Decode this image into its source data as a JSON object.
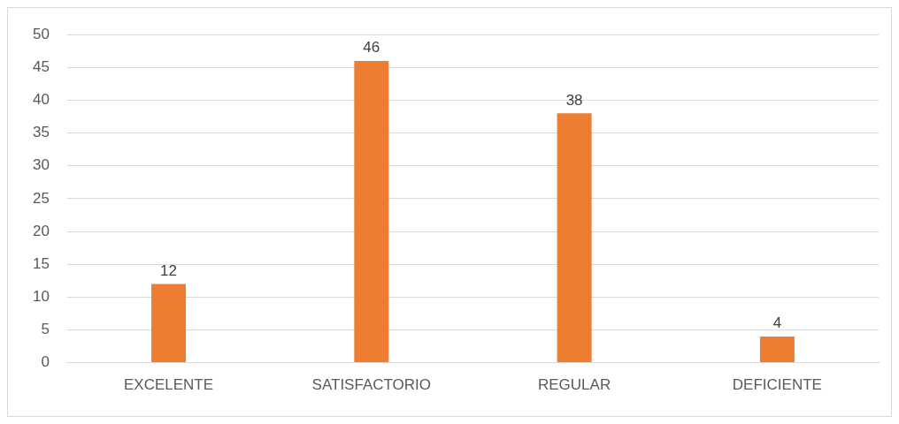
{
  "chart_data": {
    "type": "bar",
    "categories": [
      "EXCELENTE",
      "SATISFACTORIO",
      "REGULAR",
      "DEFICIENTE"
    ],
    "values": [
      12,
      46,
      38,
      4
    ],
    "color": "#ed7d31",
    "ylim": [
      0,
      50
    ],
    "yticks": [
      0,
      5,
      10,
      15,
      20,
      25,
      30,
      35,
      40,
      45,
      50
    ],
    "grid": "y",
    "data_labels": true
  }
}
